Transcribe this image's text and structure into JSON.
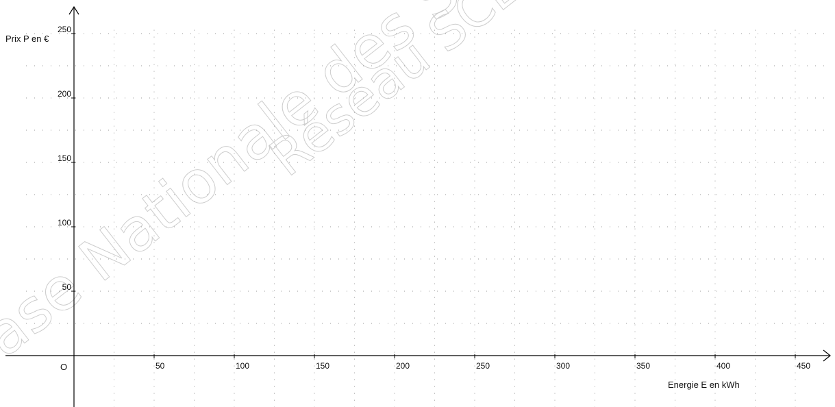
{
  "chart_data": {
    "type": "scatter",
    "title": "",
    "xlabel": "Energie E en kWh",
    "ylabel": "Prix P en €",
    "origin_label": "O",
    "xlim": [
      -45,
      460
    ],
    "ylim": [
      -25,
      255
    ],
    "x_ticks": [
      50,
      100,
      150,
      200,
      250,
      300,
      350,
      400,
      450
    ],
    "y_ticks": [
      50,
      100,
      150,
      200,
      250
    ],
    "x_tick_labels": [
      "50",
      "100",
      "150",
      "200",
      "250",
      "300",
      "350",
      "400",
      "450"
    ],
    "y_tick_labels": [
      "50",
      "100",
      "150",
      "200",
      "250"
    ],
    "x_minor_step": 25,
    "y_minor_step": 25,
    "grid": "dotted",
    "series": []
  },
  "watermark": {
    "line1": "Base Nationale des Sujets d'Examens",
    "line2": "Réseau SCEREN"
  }
}
